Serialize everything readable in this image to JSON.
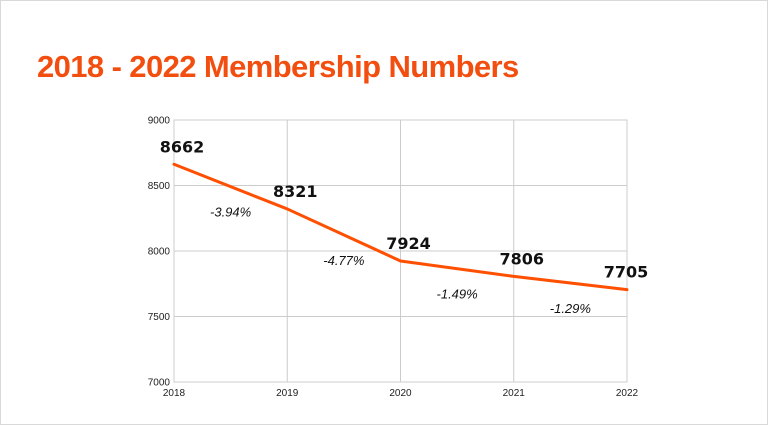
{
  "slide": {
    "title": "2018 - 2022 Membership Numbers"
  },
  "colors": {
    "accent": "#f24e0f",
    "line": "#ff4f00",
    "grid": "#cccccc"
  },
  "chart_data": {
    "type": "line",
    "title": "",
    "xlabel": "",
    "ylabel": "",
    "x": [
      "2018",
      "2019",
      "2020",
      "2021",
      "2022"
    ],
    "series": [
      {
        "values": [
          8662,
          8321,
          7924,
          7806,
          7705
        ]
      }
    ],
    "data_labels": [
      "8662",
      "8321",
      "7924",
      "7806",
      "7705"
    ],
    "annotations": [
      "-3.94%",
      "-4.77%",
      "-1.49%",
      "-1.29%"
    ],
    "ylim": [
      7000,
      9000
    ],
    "yticks": [
      7000,
      7500,
      8000,
      8500,
      9000
    ],
    "grid": true,
    "legend": "none"
  }
}
